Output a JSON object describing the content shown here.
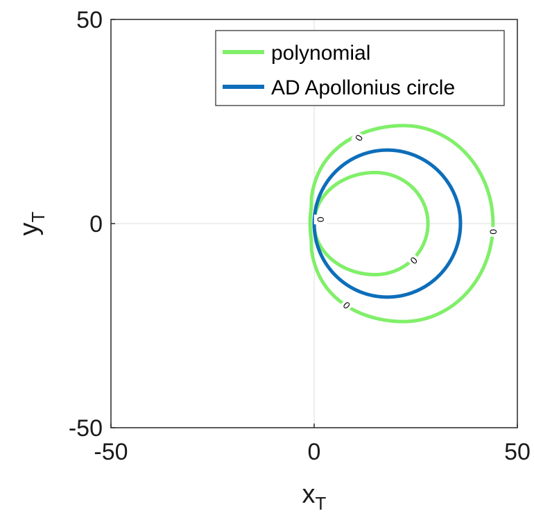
{
  "chart_data": {
    "type": "line",
    "title": "",
    "xlabel": "x",
    "xlabel_sub": "T",
    "ylabel": "y",
    "ylabel_sub": "T",
    "xlim": [
      -50,
      50
    ],
    "ylim": [
      -50,
      50
    ],
    "xticks": [
      -50,
      0,
      50
    ],
    "yticks": [
      -50,
      0,
      50
    ],
    "xtick_labels": [
      "-50",
      "0",
      "50"
    ],
    "ytick_labels": [
      "-50",
      "0",
      "50"
    ],
    "zero_lines": true,
    "grid": false,
    "legend_position": "top-right",
    "series": [
      {
        "name": "polynomial",
        "color": "#80ef69",
        "curves": [
          {
            "shape": "outer-contour",
            "center": [
              22,
              0
            ],
            "radius_right": 22,
            "radius_vertical": 24,
            "left_x": -1,
            "left_halfwidth": 6
          },
          {
            "shape": "inner-contour",
            "center": [
              15,
              0
            ],
            "radius_left": 15,
            "radius_right": 13,
            "radius_vertical": 12.5
          }
        ],
        "contour_level_labels": [
          {
            "text": "0",
            "x": 11,
            "y": 21,
            "rotation": -60
          },
          {
            "text": "0",
            "x": 44,
            "y": -2,
            "rotation": -90
          },
          {
            "text": "0",
            "x": 24.5,
            "y": -9,
            "rotation": -45
          },
          {
            "text": "0",
            "x": 8,
            "y": -20,
            "rotation": 45
          },
          {
            "text": "0",
            "x": 1.5,
            "y": 1,
            "rotation": -90
          }
        ]
      },
      {
        "name": "AD Apollonius circle",
        "color": "#0d6eba",
        "curves": [
          {
            "shape": "circle",
            "center": [
              18,
              0
            ],
            "radius": 18
          }
        ]
      }
    ]
  }
}
